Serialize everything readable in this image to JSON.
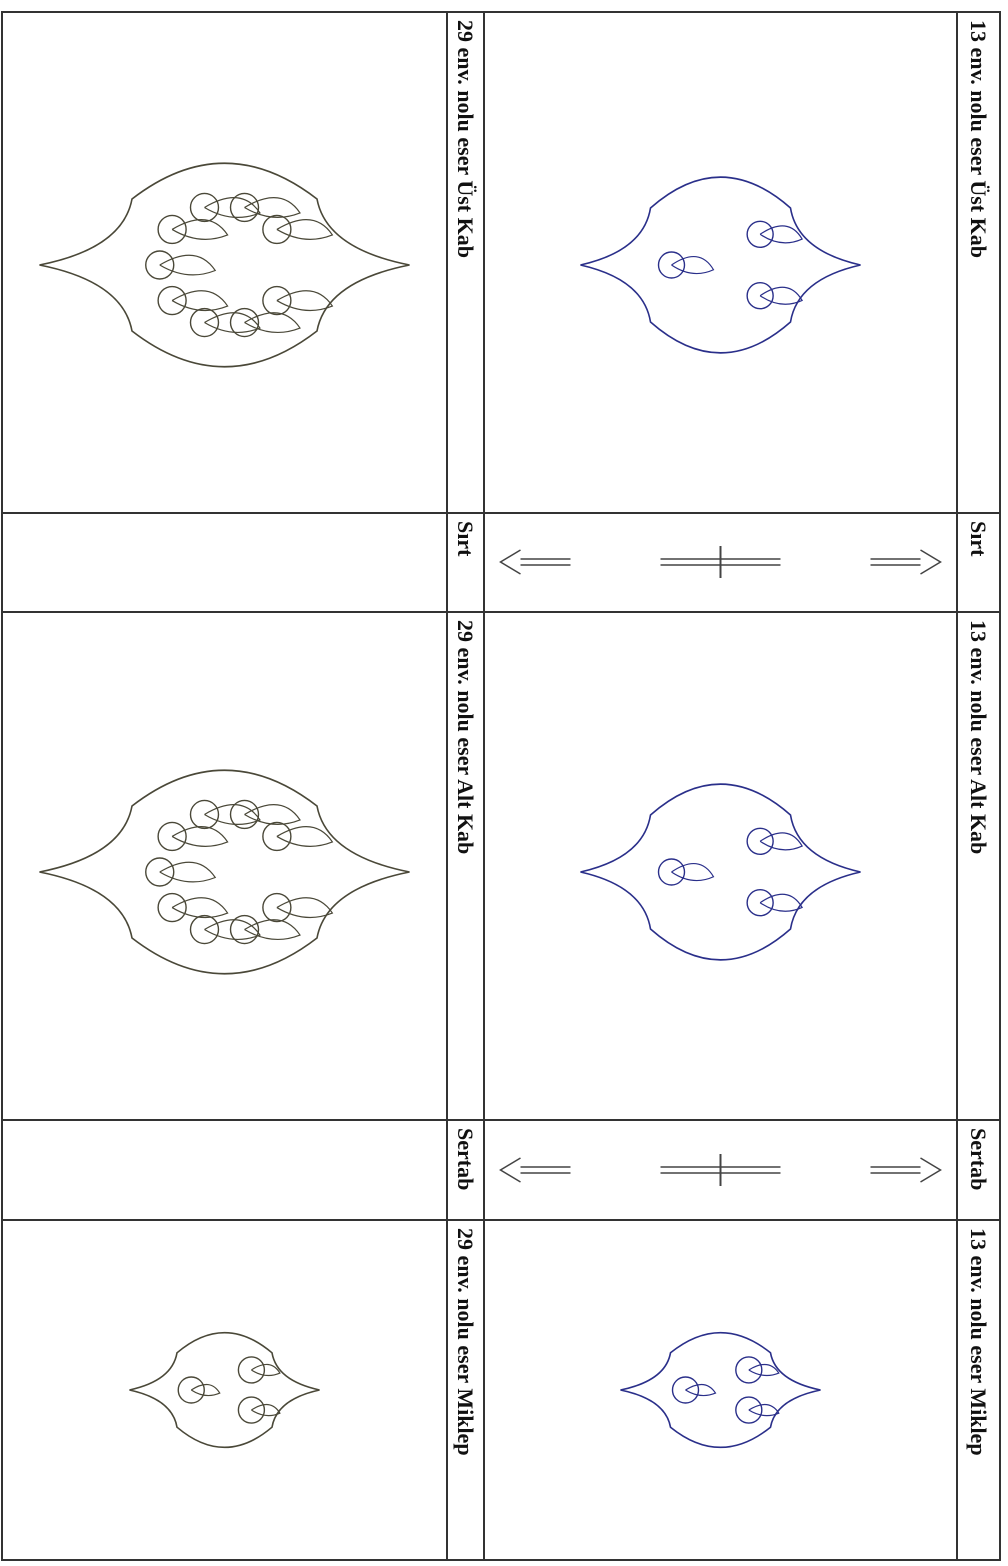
{
  "table": {
    "columns": [
      {
        "sections": [
          {
            "label": "13 env. nolu eser Üst Kab"
          },
          {
            "label": "Sırt"
          },
          {
            "label": "13 env. nolu eser Alt Kab"
          },
          {
            "label": "Sertab"
          },
          {
            "label": "13 env. nolu eser Miklep"
          }
        ]
      },
      {
        "sections": [
          {
            "label": "29 env. nolu eser Üst Kab"
          },
          {
            "label": "Sırt"
          },
          {
            "label": "29 env. nolu eser Alt Kab"
          },
          {
            "label": "Sertab"
          },
          {
            "label": "29 env. nolu eser Miklep"
          }
        ]
      }
    ]
  }
}
